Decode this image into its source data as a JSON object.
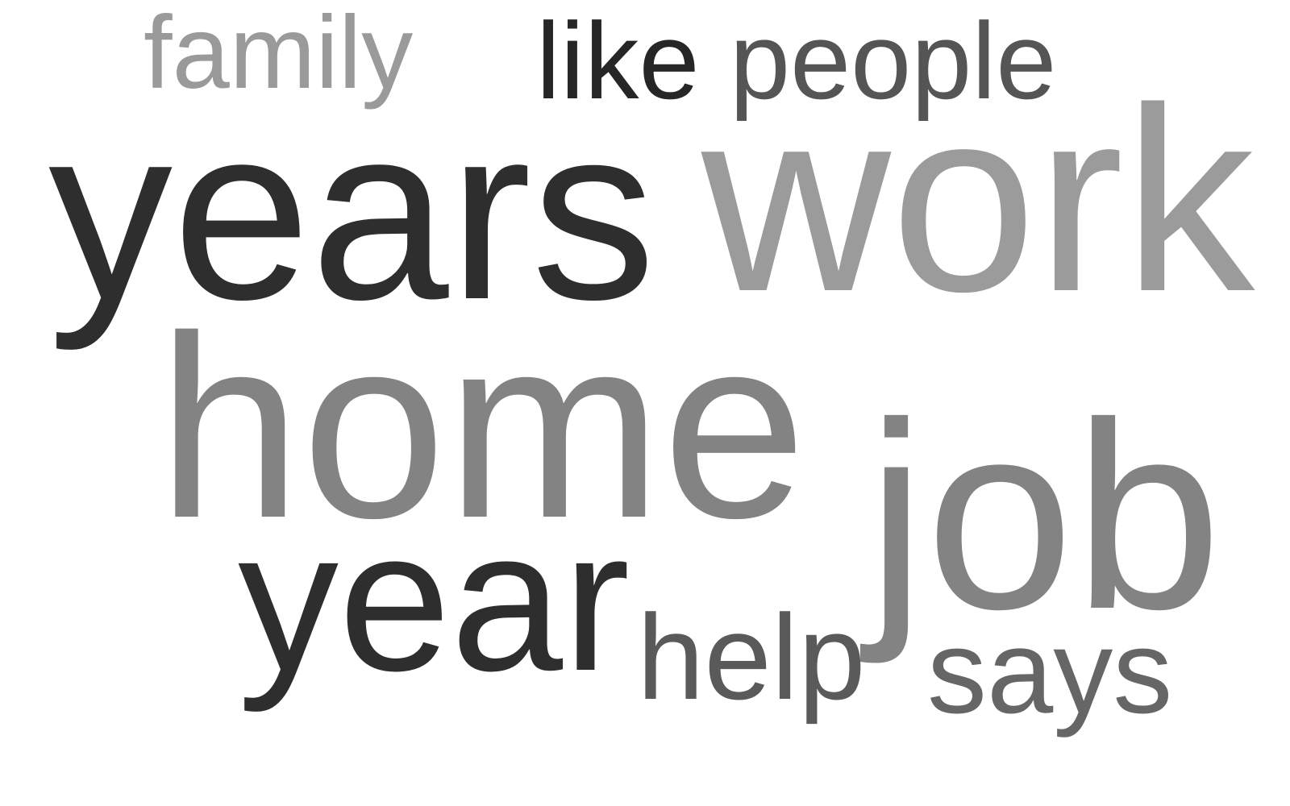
{
  "words": [
    {
      "text": "family",
      "color": "#9a9a9a"
    },
    {
      "text": "like",
      "color": "#262626"
    },
    {
      "text": "people",
      "color": "#555555"
    },
    {
      "text": "years",
      "color": "#2e2e2e"
    },
    {
      "text": "work",
      "color": "#9b9b9b"
    },
    {
      "text": "home",
      "color": "#838383"
    },
    {
      "text": "year",
      "color": "#2e2e2e"
    },
    {
      "text": "help",
      "color": "#5a5a5a"
    },
    {
      "text": "job",
      "color": "#838383"
    },
    {
      "text": "says",
      "color": "#666666"
    }
  ]
}
